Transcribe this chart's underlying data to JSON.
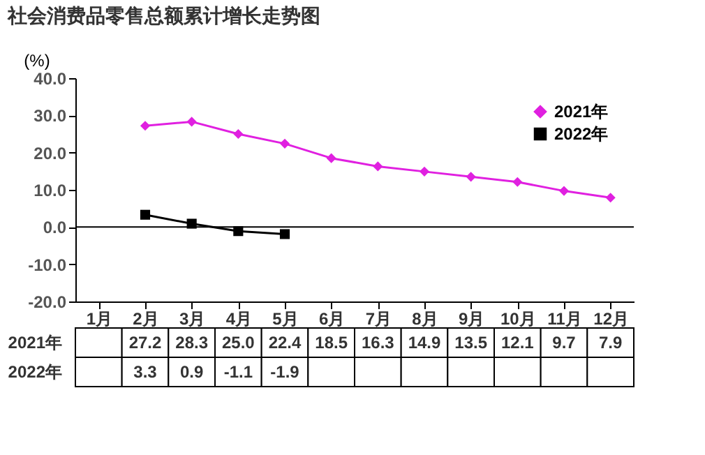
{
  "chart_data": {
    "type": "line",
    "title": "社会消费品零售总额累计增长走势图",
    "ylabel": "(%)",
    "categories": [
      "1月",
      "2月",
      "3月",
      "4月",
      "5月",
      "6月",
      "7月",
      "8月",
      "9月",
      "10月",
      "11月",
      "12月"
    ],
    "series": [
      {
        "name": "2021年",
        "color": "#e020e0",
        "marker": "diamond",
        "values": [
          null,
          27.2,
          28.3,
          25.0,
          22.4,
          18.5,
          16.3,
          14.9,
          13.5,
          12.1,
          9.7,
          7.9
        ],
        "value_labels": [
          null,
          "27.2",
          "28.3",
          "25.0",
          "22.4",
          "18.5",
          "16.3",
          "14.9",
          "13.5",
          "12.1",
          "9.7",
          "7.9"
        ]
      },
      {
        "name": "2022年",
        "color": "#000000",
        "marker": "square",
        "values": [
          null,
          3.3,
          0.9,
          -1.1,
          -1.9,
          null,
          null,
          null,
          null,
          null,
          null,
          null
        ],
        "value_labels": [
          null,
          "3.3",
          "0.9",
          "-1.1",
          "-1.9",
          null,
          null,
          null,
          null,
          null,
          null,
          null
        ]
      }
    ],
    "ylim": [
      -20,
      40
    ],
    "yticks": [
      {
        "value": -20,
        "label": "-20.0"
      },
      {
        "value": -10,
        "label": "-10.0"
      },
      {
        "value": 0,
        "label": "0.0"
      },
      {
        "value": 10,
        "label": "10.0"
      },
      {
        "value": 20,
        "label": "20.0"
      },
      {
        "value": 30,
        "label": "30.0"
      },
      {
        "value": 40,
        "label": "40.0"
      }
    ],
    "ref_lines": [
      {
        "axis": "y",
        "value": 0,
        "color": "#000000"
      }
    ],
    "legend": "top right",
    "grid": false
  }
}
